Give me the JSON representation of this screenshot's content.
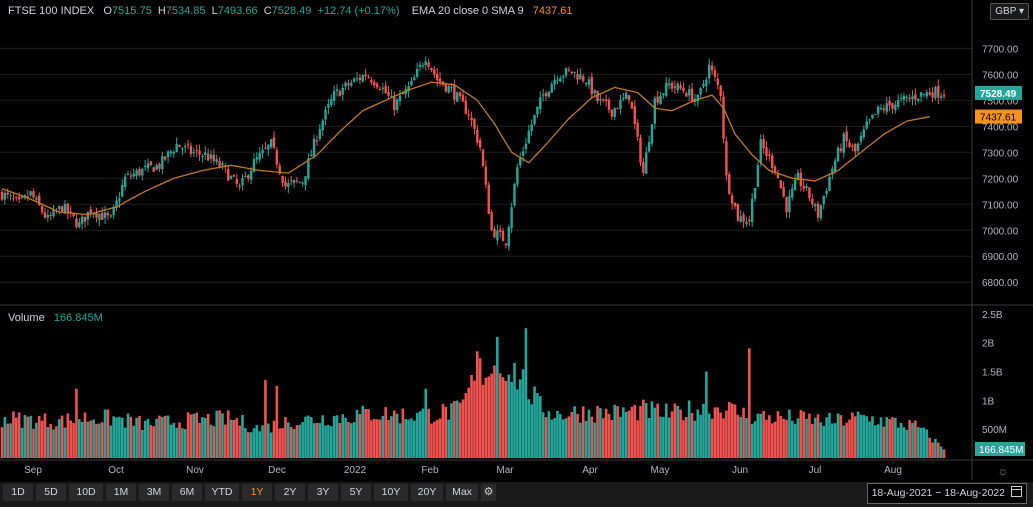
{
  "header": {
    "symbol": "FTSE 100 INDEX",
    "open_label": "O",
    "open": "7515.75",
    "high_label": "H",
    "high": "7534.85",
    "low_label": "L",
    "low": "7493.66",
    "close_label": "C",
    "close": "7528.49",
    "change": "+12.74 (+0.17%)",
    "indicator": "EMA 20 close 0 SMA 9",
    "indicator_value": "7437.61"
  },
  "currency": "GBP",
  "volume_header": {
    "label": "Volume",
    "value": "166.845M"
  },
  "toolbar": {
    "ranges": [
      "1D",
      "5D",
      "10D",
      "1M",
      "3M",
      "6M",
      "YTD",
      "1Y",
      "2Y",
      "3Y",
      "5Y",
      "10Y",
      "20Y",
      "Max"
    ],
    "active": "1Y",
    "date_range": "18-Aug-2021  −  18-Aug-2022"
  },
  "colors": {
    "up": "#26a69a",
    "down": "#ef5350",
    "ema": "#c07a2c",
    "price_tag": "#26a69a",
    "ema_tag": "#f7931a"
  },
  "chart_data": {
    "type": "candlestick",
    "price_axis": {
      "ticks": [
        "7700.00",
        "7600.00",
        "7500.00",
        "7400.00",
        "7300.00",
        "7200.00",
        "7100.00",
        "7000.00",
        "6900.00",
        "6800.00"
      ],
      "range": [
        6720,
        7790
      ]
    },
    "volume_axis": {
      "ticks": [
        "2.5B",
        "2B",
        "1.5B",
        "1B",
        "500M"
      ],
      "range": [
        0,
        2600000000
      ]
    },
    "x_labels": [
      "Sep",
      "Oct",
      "Nov",
      "Dec",
      "2022",
      "Feb",
      "Mar",
      "Apr",
      "May",
      "Jun",
      "Jul",
      "Aug"
    ],
    "last_price": "7528.49",
    "ema_last": "7437.61",
    "volume_last": "166.845M",
    "close_path": [
      [
        0,
        7140
      ],
      [
        6,
        7100
      ],
      [
        10,
        7140
      ],
      [
        16,
        7040
      ],
      [
        21,
        7090
      ],
      [
        27,
        7020
      ],
      [
        31,
        7080
      ],
      [
        38,
        7040
      ],
      [
        43,
        7200
      ],
      [
        49,
        7230
      ],
      [
        55,
        7250
      ],
      [
        61,
        7330
      ],
      [
        66,
        7300
      ],
      [
        71,
        7290
      ],
      [
        77,
        7240
      ],
      [
        83,
        7160
      ],
      [
        88,
        7260
      ],
      [
        94,
        7330
      ],
      [
        99,
        7170
      ],
      [
        105,
        7190
      ],
      [
        111,
        7400
      ],
      [
        116,
        7520
      ],
      [
        121,
        7560
      ],
      [
        127,
        7600
      ],
      [
        132,
        7560
      ],
      [
        137,
        7480
      ],
      [
        143,
        7560
      ],
      [
        148,
        7670
      ],
      [
        152,
        7580
      ],
      [
        157,
        7540
      ],
      [
        163,
        7450
      ],
      [
        167,
        7320
      ],
      [
        171,
        7000
      ],
      [
        176,
        6960
      ],
      [
        180,
        7240
      ],
      [
        184,
        7380
      ],
      [
        189,
        7520
      ],
      [
        194,
        7600
      ],
      [
        199,
        7610
      ],
      [
        204,
        7580
      ],
      [
        208,
        7500
      ],
      [
        213,
        7460
      ],
      [
        219,
        7520
      ],
      [
        224,
        7220
      ],
      [
        228,
        7500
      ],
      [
        233,
        7560
      ],
      [
        238,
        7540
      ],
      [
        243,
        7500
      ],
      [
        247,
        7630
      ],
      [
        251,
        7530
      ],
      [
        253,
        7200
      ],
      [
        257,
        7050
      ],
      [
        261,
        7040
      ],
      [
        265,
        7330
      ],
      [
        270,
        7240
      ],
      [
        274,
        7090
      ],
      [
        278,
        7200
      ],
      [
        282,
        7130
      ],
      [
        285,
        7060
      ],
      [
        290,
        7240
      ],
      [
        294,
        7350
      ],
      [
        298,
        7300
      ],
      [
        302,
        7400
      ],
      [
        306,
        7460
      ],
      [
        310,
        7480
      ],
      [
        315,
        7500
      ],
      [
        320,
        7520
      ],
      [
        325,
        7533
      ],
      [
        329,
        7528
      ]
    ],
    "ema_path": [
      [
        0,
        7160
      ],
      [
        10,
        7120
      ],
      [
        20,
        7070
      ],
      [
        30,
        7060
      ],
      [
        40,
        7090
      ],
      [
        50,
        7150
      ],
      [
        60,
        7200
      ],
      [
        70,
        7230
      ],
      [
        80,
        7250
      ],
      [
        90,
        7230
      ],
      [
        100,
        7220
      ],
      [
        110,
        7290
      ],
      [
        118,
        7380
      ],
      [
        126,
        7460
      ],
      [
        134,
        7500
      ],
      [
        142,
        7540
      ],
      [
        150,
        7570
      ],
      [
        158,
        7560
      ],
      [
        166,
        7500
      ],
      [
        172,
        7410
      ],
      [
        178,
        7300
      ],
      [
        184,
        7260
      ],
      [
        190,
        7330
      ],
      [
        198,
        7430
      ],
      [
        206,
        7510
      ],
      [
        214,
        7550
      ],
      [
        222,
        7530
      ],
      [
        228,
        7470
      ],
      [
        234,
        7460
      ],
      [
        242,
        7500
      ],
      [
        248,
        7520
      ],
      [
        252,
        7470
      ],
      [
        256,
        7370
      ],
      [
        262,
        7290
      ],
      [
        268,
        7230
      ],
      [
        276,
        7200
      ],
      [
        284,
        7190
      ],
      [
        292,
        7230
      ],
      [
        300,
        7300
      ],
      [
        308,
        7370
      ],
      [
        316,
        7420
      ],
      [
        324,
        7437
      ]
    ],
    "volume_path": [
      [
        0,
        700
      ],
      [
        10,
        680
      ],
      [
        20,
        650
      ],
      [
        30,
        720
      ],
      [
        40,
        700
      ],
      [
        50,
        600
      ],
      [
        60,
        650
      ],
      [
        70,
        680
      ],
      [
        80,
        700
      ],
      [
        90,
        520
      ],
      [
        100,
        650
      ],
      [
        110,
        700
      ],
      [
        120,
        740
      ],
      [
        130,
        800
      ],
      [
        140,
        760
      ],
      [
        150,
        780
      ],
      [
        160,
        850
      ],
      [
        166,
        1500
      ],
      [
        170,
        1600
      ],
      [
        176,
        1700
      ],
      [
        182,
        1350
      ],
      [
        188,
        900
      ],
      [
        194,
        780
      ],
      [
        204,
        820
      ],
      [
        214,
        800
      ],
      [
        224,
        850
      ],
      [
        234,
        780
      ],
      [
        240,
        850
      ],
      [
        246,
        880
      ],
      [
        252,
        900
      ],
      [
        260,
        760
      ],
      [
        270,
        720
      ],
      [
        280,
        700
      ],
      [
        290,
        650
      ],
      [
        300,
        720
      ],
      [
        310,
        650
      ],
      [
        320,
        550
      ],
      [
        329,
        167
      ]
    ],
    "volume_spikes": [
      [
        26,
        1200
      ],
      [
        92,
        1350
      ],
      [
        96,
        1250
      ],
      [
        148,
        1200
      ],
      [
        166,
        1850
      ],
      [
        173,
        2100
      ],
      [
        183,
        2250
      ],
      [
        261,
        1900
      ],
      [
        246,
        1500
      ],
      [
        175,
        1400
      ]
    ]
  }
}
